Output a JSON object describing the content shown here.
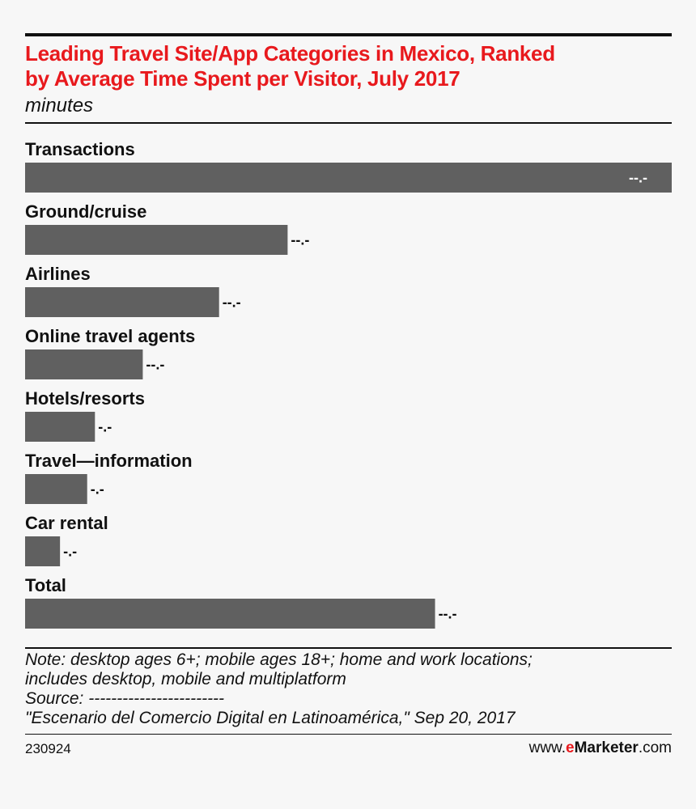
{
  "header": {
    "title_line1": "Leading Travel Site/App Categories in Mexico, Ranked",
    "title_line2": "by Average Time Spent per Visitor, July 2017",
    "subtitle": "minutes"
  },
  "chart_data": {
    "type": "bar",
    "orientation": "horizontal",
    "title": "Leading Travel Site/App Categories in Mexico, Ranked by Average Time Spent per Visitor, July 2017",
    "unit": "minutes",
    "categories": [
      "Transactions",
      "Ground/cruise",
      "Airlines",
      "Online travel agents",
      "Hotels/resorts",
      "Travel—information",
      "Car rental",
      "Total"
    ],
    "values": [
      50.0,
      20.3,
      15.0,
      9.1,
      5.4,
      4.8,
      2.7,
      31.7
    ],
    "value_labels": [
      "--.-",
      "--.-",
      "--.-",
      "--.-",
      "-.-",
      "-.-",
      "-.-",
      "--.-"
    ],
    "xlim": [
      0,
      50
    ],
    "grid": false,
    "legend": "none",
    "bar_color": "#606060"
  },
  "footer": {
    "note_line1": "Note: desktop ages 6+; mobile ages 18+; home and work locations;",
    "note_line2": "includes desktop, mobile and multiplatform",
    "source_line": "Source: ------------------------",
    "source_detail": "\"Escenario del Comercio Digital en Latinoamérica,\" Sep 20, 2017",
    "chart_id": "230924",
    "brand_prefix": "www.",
    "brand_e": "e",
    "brand_name": "Marketer",
    "brand_suffix": ".com"
  },
  "colors": {
    "title": "#e8191d",
    "bar": "#606060",
    "text": "#111111",
    "background": "#f7f7f7"
  }
}
